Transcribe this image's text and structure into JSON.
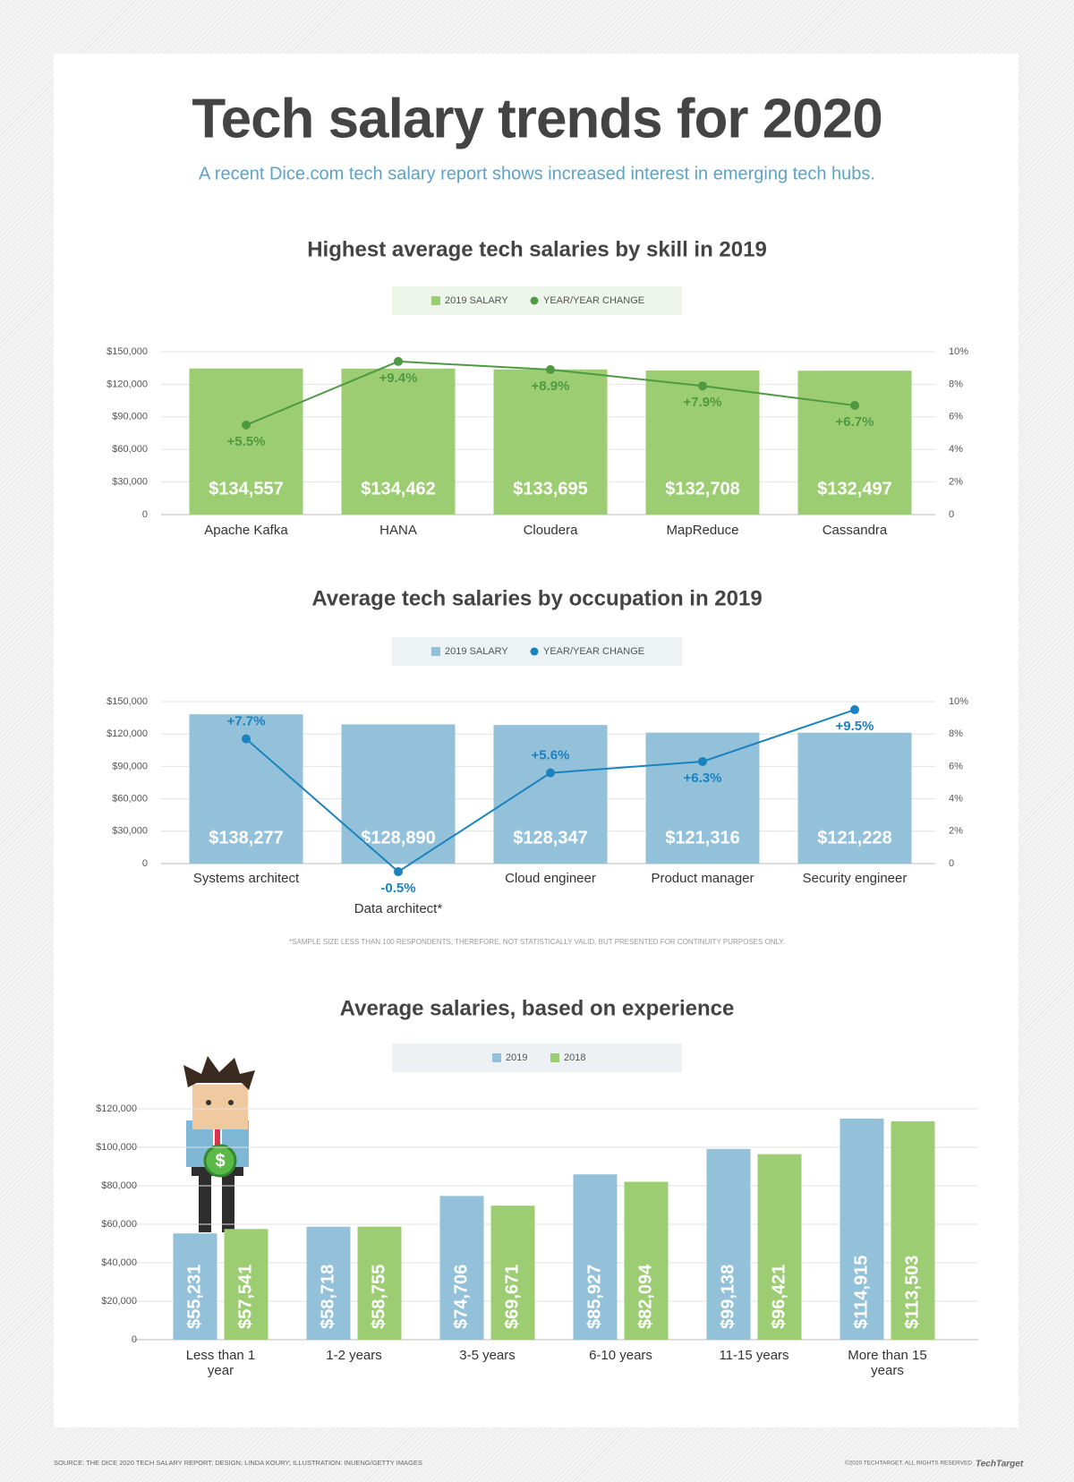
{
  "title": "Tech salary trends for 2020",
  "subtitle": "A recent Dice.com tech salary report shows increased interest in emerging tech hubs.",
  "chart_data": [
    {
      "type": "combo",
      "title": "Highest average tech salaries by skill in 2019",
      "categories": [
        "Apache Kafka",
        "HANA",
        "Cloudera",
        "MapReduce",
        "Cassandra"
      ],
      "series": [
        {
          "name": "2019 SALARY",
          "color": "#9dcd72",
          "values": [
            134557,
            134462,
            133695,
            132708,
            132497
          ],
          "value_labels": [
            "$134,557",
            "$134,462",
            "$133,695",
            "$132,708",
            "$132,497"
          ]
        },
        {
          "name": "YEAR/YEAR CHANGE",
          "color": "#4e9a43",
          "axis": "y2",
          "values": [
            5.5,
            9.4,
            8.9,
            7.9,
            6.7
          ],
          "value_labels": [
            "+5.5%",
            "+9.4%",
            "+8.9%",
            "+7.9%",
            "+6.7%"
          ]
        }
      ],
      "ylim": [
        0,
        150000
      ],
      "yticks": [
        0,
        {
          "value": 30000,
          "label": "$30,000"
        },
        {
          "value": 60000,
          "label": "$60,000"
        },
        {
          "value": 90000,
          "label": "$90,000"
        },
        {
          "value": 120000,
          "label": "$120,000"
        },
        {
          "value": 150000,
          "label": "$150,000"
        }
      ],
      "y2lim": [
        0,
        10
      ],
      "y2ticks": [
        0,
        {
          "value": 2,
          "label": "2%"
        },
        {
          "value": 4,
          "label": "4%"
        },
        {
          "value": 6,
          "label": "6%"
        },
        {
          "value": 8,
          "label": "8%"
        },
        {
          "value": 10,
          "label": "10%"
        }
      ],
      "grid": true,
      "legend": "top"
    },
    {
      "type": "combo",
      "title": "Average tech salaries by occupation in 2019",
      "categories": [
        "Systems architect",
        "Data architect*",
        "Cloud engineer",
        "Product manager",
        "Security engineer"
      ],
      "series": [
        {
          "name": "2019 SALARY",
          "color": "#94c1da",
          "values": [
            138277,
            128890,
            128347,
            121316,
            121228
          ],
          "value_labels": [
            "$138,277",
            "$128,890",
            "$128,347",
            "$121,316",
            "$121,228"
          ]
        },
        {
          "name": "YEAR/YEAR CHANGE",
          "color": "#1a82bf",
          "axis": "y2",
          "values": [
            7.7,
            -0.5,
            5.6,
            6.3,
            9.5
          ],
          "value_labels": [
            "+7.7%",
            "-0.5%",
            "+5.6%",
            "+6.3%",
            "+9.5%"
          ]
        }
      ],
      "ylim": [
        0,
        150000
      ],
      "yticks": [
        0,
        {
          "value": 30000,
          "label": "$30,000"
        },
        {
          "value": 60000,
          "label": "$60,000"
        },
        {
          "value": 90000,
          "label": "$90,000"
        },
        {
          "value": 120000,
          "label": "$120,000"
        },
        {
          "value": 150000,
          "label": "$150,000"
        }
      ],
      "y2lim": [
        0,
        10
      ],
      "y2ticks": [
        0,
        {
          "value": 2,
          "label": "2%"
        },
        {
          "value": 4,
          "label": "4%"
        },
        {
          "value": 6,
          "label": "6%"
        },
        {
          "value": 8,
          "label": "8%"
        },
        {
          "value": 10,
          "label": "10%"
        }
      ],
      "grid": true,
      "legend": "top",
      "footnote": "*SAMPLE SIZE LESS THAN 100 RESPONDENTS; THEREFORE, NOT STATISTICALLY VALID, BUT PRESENTED FOR CONTINUITY PURPOSES ONLY."
    },
    {
      "type": "bar",
      "title": "Average salaries, based on experience",
      "categories": [
        "Less than 1 year",
        "1-2 years",
        "3-5 years",
        "6-10 years",
        "11-15 years",
        "More than 15 years"
      ],
      "series": [
        {
          "name": "2019",
          "color": "#94c1da",
          "values": [
            55231,
            58718,
            74706,
            85927,
            99138,
            114915
          ],
          "value_labels": [
            "$55,231",
            "$58,718",
            "$74,706",
            "$85,927",
            "$99,138",
            "$114,915"
          ]
        },
        {
          "name": "2018",
          "color": "#9dcd72",
          "values": [
            57541,
            58755,
            69671,
            82094,
            96421,
            113503
          ],
          "value_labels": [
            "$57,541",
            "$58,755",
            "$69,671",
            "$82,094",
            "$96,421",
            "$113,503"
          ]
        }
      ],
      "ylim": [
        0,
        120000
      ],
      "yticks": [
        0,
        {
          "value": 20000,
          "label": "$20,000"
        },
        {
          "value": 40000,
          "label": "$40,000"
        },
        {
          "value": 60000,
          "label": "$60,000"
        },
        {
          "value": 80000,
          "label": "$80,000"
        },
        {
          "value": 100000,
          "label": "$100,000"
        },
        {
          "value": 120000,
          "label": "$120,000"
        }
      ],
      "grid": true,
      "legend": "top"
    }
  ],
  "source": "SOURCE: THE DICE 2020 TECH SALARY REPORT; DESIGN: LINDA KOURY; ILLUSTRATION: INUENG/GETTY IMAGES",
  "copyright": "©2020 TECHTARGET. ALL RIGHTS RESERVED",
  "logo": "TechTarget"
}
